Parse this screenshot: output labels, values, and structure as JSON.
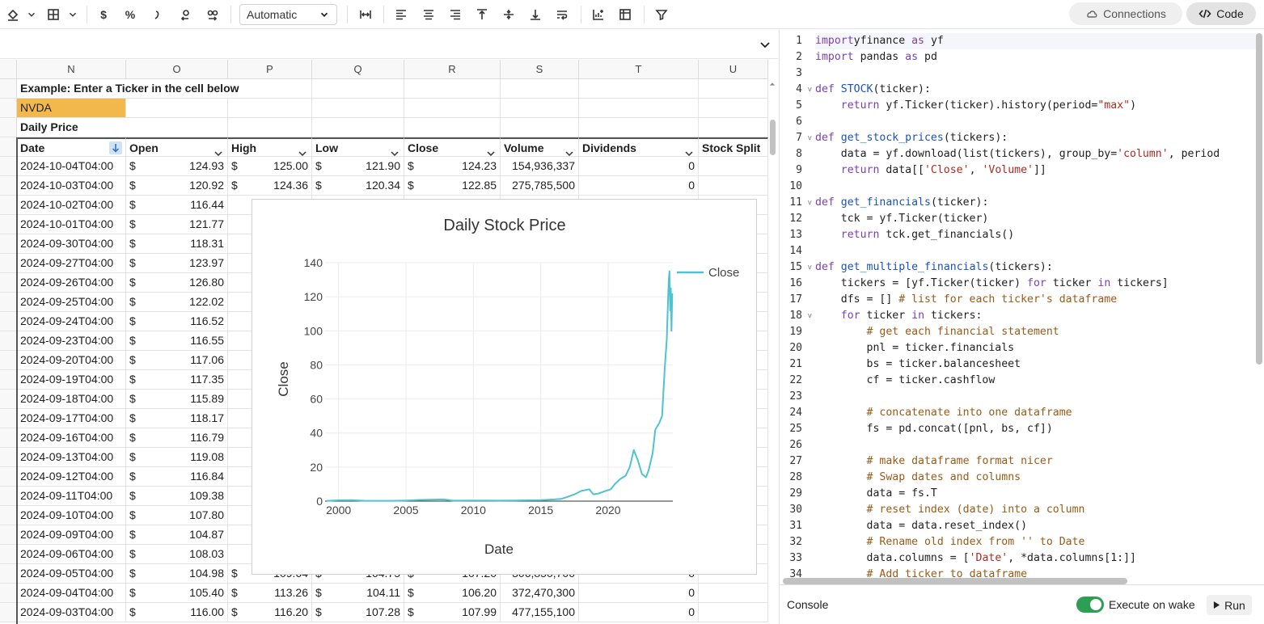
{
  "toolbar": {
    "format_select": "Automatic",
    "connections_label": "Connections",
    "code_label": "Code"
  },
  "sheet": {
    "columns": [
      "N",
      "O",
      "P",
      "Q",
      "R",
      "S",
      "T",
      "U"
    ],
    "example_label": "Example: Enter a Ticker in the cell below",
    "ticker_value": "NVDA",
    "daily_price_label": "Daily Price",
    "table_headers": [
      "Date",
      "Open",
      "High",
      "Low",
      "Close",
      "Volume",
      "Dividends",
      "Stock Split"
    ],
    "currency_symbol": "$",
    "ticker_cell_color": "#f2b84b",
    "rows": [
      {
        "date": "2024-10-04T04:00",
        "open": "124.93",
        "high": "125.00",
        "low": "121.90",
        "close": "124.23",
        "volume": "154,936,337",
        "div": "0"
      },
      {
        "date": "2024-10-03T04:00",
        "open": "120.92",
        "high": "124.36",
        "low": "120.34",
        "close": "122.85",
        "volume": "275,785,500",
        "div": "0"
      },
      {
        "date": "2024-10-02T04:00",
        "open": "116.44"
      },
      {
        "date": "2024-10-01T04:00",
        "open": "121.77"
      },
      {
        "date": "2024-09-30T04:00",
        "open": "118.31"
      },
      {
        "date": "2024-09-27T04:00",
        "open": "123.97"
      },
      {
        "date": "2024-09-26T04:00",
        "open": "126.80"
      },
      {
        "date": "2024-09-25T04:00",
        "open": "122.02"
      },
      {
        "date": "2024-09-24T04:00",
        "open": "116.52"
      },
      {
        "date": "2024-09-23T04:00",
        "open": "116.55"
      },
      {
        "date": "2024-09-20T04:00",
        "open": "117.06"
      },
      {
        "date": "2024-09-19T04:00",
        "open": "117.35"
      },
      {
        "date": "2024-09-18T04:00",
        "open": "115.89"
      },
      {
        "date": "2024-09-17T04:00",
        "open": "118.17"
      },
      {
        "date": "2024-09-16T04:00",
        "open": "116.79"
      },
      {
        "date": "2024-09-13T04:00",
        "open": "119.08"
      },
      {
        "date": "2024-09-12T04:00",
        "open": "116.84"
      },
      {
        "date": "2024-09-11T04:00",
        "open": "109.38"
      },
      {
        "date": "2024-09-10T04:00",
        "open": "107.80"
      },
      {
        "date": "2024-09-09T04:00",
        "open": "104.87"
      },
      {
        "date": "2024-09-06T04:00",
        "open": "108.03"
      },
      {
        "date": "2024-09-05T04:00",
        "open": "104.98",
        "high": "109.64",
        "low": "104.75",
        "close": "107.20",
        "volume": "306,850,700",
        "div": "0"
      },
      {
        "date": "2024-09-04T04:00",
        "open": "105.40",
        "high": "113.26",
        "low": "104.11",
        "close": "106.20",
        "volume": "372,470,300",
        "div": "0"
      },
      {
        "date": "2024-09-03T04:00",
        "open": "116.00",
        "high": "116.20",
        "low": "107.28",
        "close": "107.99",
        "volume": "477,155,100",
        "div": "0"
      }
    ]
  },
  "chart_data": {
    "type": "line",
    "title": "Daily Stock Price",
    "xlabel": "Date",
    "ylabel": "Close",
    "xlim": [
      1999,
      2024.8
    ],
    "ylim": [
      0,
      140
    ],
    "x_ticks": [
      "2000",
      "2005",
      "2010",
      "2015",
      "2020"
    ],
    "y_ticks": [
      "0",
      "20",
      "40",
      "60",
      "80",
      "100",
      "120",
      "140"
    ],
    "grid": true,
    "legend": "top-right",
    "series_color": "#4fc3cf",
    "series": [
      {
        "name": "Close",
        "x": [
          1999.1,
          2000.0,
          2001.0,
          2002.0,
          2003.0,
          2004.0,
          2005.0,
          2006.0,
          2007.0,
          2007.8,
          2008.5,
          2009.0,
          2010.0,
          2011.0,
          2012.0,
          2013.0,
          2014.0,
          2015.0,
          2016.0,
          2016.5,
          2017.0,
          2017.5,
          2018.0,
          2018.6,
          2018.9,
          2019.3,
          2019.8,
          2020.2,
          2020.5,
          2020.9,
          2021.3,
          2021.6,
          2021.9,
          2022.2,
          2022.5,
          2022.8,
          2023.0,
          2023.3,
          2023.5,
          2023.8,
          2024.0,
          2024.2,
          2024.35,
          2024.45,
          2024.5,
          2024.55,
          2024.6,
          2024.65,
          2024.7,
          2024.76
        ],
        "y": [
          0.1,
          0.5,
          0.6,
          0.2,
          0.2,
          0.2,
          0.4,
          0.7,
          0.9,
          1.0,
          0.3,
          0.3,
          0.4,
          0.4,
          0.3,
          0.4,
          0.5,
          0.6,
          1.0,
          1.3,
          2.5,
          4.0,
          6.0,
          7.0,
          4.0,
          4.5,
          6.0,
          7.0,
          10.0,
          13.0,
          15.0,
          20.0,
          30.0,
          24.0,
          16.0,
          14.0,
          18.0,
          28.0,
          42.0,
          46.0,
          50.0,
          78.0,
          95.0,
          120.0,
          130.0,
          135.0,
          112.0,
          125.0,
          100.0,
          122.0
        ]
      }
    ]
  },
  "code": {
    "lines": [
      [
        [
          "kw",
          "import"
        ],
        [
          "",
          "yfinance "
        ],
        [
          "kw",
          "as"
        ],
        [
          "",
          " yf"
        ]
      ],
      [
        [
          "kw",
          "import"
        ],
        [
          "",
          " pandas "
        ],
        [
          "kw",
          "as"
        ],
        [
          "",
          " pd"
        ]
      ],
      [],
      [
        [
          "kw",
          "def"
        ],
        [
          "",
          " "
        ],
        [
          "fn",
          "STOCK"
        ],
        [
          "",
          "(ticker):"
        ]
      ],
      [
        [
          "",
          "    "
        ],
        [
          "kw",
          "return"
        ],
        [
          "",
          " yf.Ticker(ticker).history(period="
        ],
        [
          "str",
          "\"max\""
        ],
        [
          "",
          ")"
        ]
      ],
      [],
      [
        [
          "kw",
          "def"
        ],
        [
          "",
          " "
        ],
        [
          "fn",
          "get_stock_prices"
        ],
        [
          "",
          "(tickers):"
        ]
      ],
      [
        [
          "",
          "    data = yf.download(list(tickers), group_by="
        ],
        [
          "str",
          "'column'"
        ],
        [
          "",
          ", period"
        ]
      ],
      [
        [
          "",
          "    "
        ],
        [
          "kw",
          "return"
        ],
        [
          "",
          " data[["
        ],
        [
          "str",
          "'Close'"
        ],
        [
          "",
          ", "
        ],
        [
          "str",
          "'Volume'"
        ],
        [
          "",
          "]]"
        ]
      ],
      [],
      [
        [
          "kw",
          "def"
        ],
        [
          "",
          " "
        ],
        [
          "fn",
          "get_financials"
        ],
        [
          "",
          "(ticker):"
        ]
      ],
      [
        [
          "",
          "    tck = yf.Ticker(ticker)"
        ]
      ],
      [
        [
          "",
          "    "
        ],
        [
          "kw",
          "return"
        ],
        [
          "",
          " tck.get_financials()"
        ]
      ],
      [],
      [
        [
          "kw",
          "def"
        ],
        [
          "",
          " "
        ],
        [
          "fn",
          "get_multiple_financials"
        ],
        [
          "",
          "(tickers):"
        ]
      ],
      [
        [
          "",
          "    tickers = [yf.Ticker(ticker) "
        ],
        [
          "kw",
          "for"
        ],
        [
          "",
          " ticker "
        ],
        [
          "kw",
          "in"
        ],
        [
          "",
          " tickers]"
        ]
      ],
      [
        [
          "",
          "    dfs = [] "
        ],
        [
          "cm",
          "# list for each ticker's dataframe"
        ]
      ],
      [
        [
          "",
          "    "
        ],
        [
          "kw",
          "for"
        ],
        [
          "",
          " ticker "
        ],
        [
          "kw",
          "in"
        ],
        [
          "",
          " tickers:"
        ]
      ],
      [
        [
          "",
          "        "
        ],
        [
          "cm",
          "# get each financial statement"
        ]
      ],
      [
        [
          "",
          "        pnl = ticker.financials"
        ]
      ],
      [
        [
          "",
          "        bs = ticker.balancesheet"
        ]
      ],
      [
        [
          "",
          "        cf = ticker.cashflow"
        ]
      ],
      [],
      [
        [
          "",
          "        "
        ],
        [
          "cm",
          "# concatenate into one dataframe"
        ]
      ],
      [
        [
          "",
          "        fs = pd.concat([pnl, bs, cf])"
        ]
      ],
      [],
      [
        [
          "",
          "        "
        ],
        [
          "cm",
          "# make dataframe format nicer"
        ]
      ],
      [
        [
          "",
          "        "
        ],
        [
          "cm",
          "# Swap dates and columns"
        ]
      ],
      [
        [
          "",
          "        data = fs.T"
        ]
      ],
      [
        [
          "",
          "        "
        ],
        [
          "cm",
          "# reset index (date) into a column"
        ]
      ],
      [
        [
          "",
          "        data = data.reset_index()"
        ]
      ],
      [
        [
          "",
          "        "
        ],
        [
          "cm",
          "# Rename old index from '' to Date"
        ]
      ],
      [
        [
          "",
          "        data.columns = ["
        ],
        [
          "str",
          "'Date'"
        ],
        [
          "",
          ", *data.columns[1:]]"
        ]
      ],
      [
        [
          "",
          "        "
        ],
        [
          "cm",
          "# Add ticker to dataframe"
        ]
      ]
    ],
    "fold_lines": [
      4,
      7,
      11,
      15,
      18
    ]
  },
  "console": {
    "title": "Console",
    "execute_label": "Execute on wake",
    "run_label": "Run"
  }
}
